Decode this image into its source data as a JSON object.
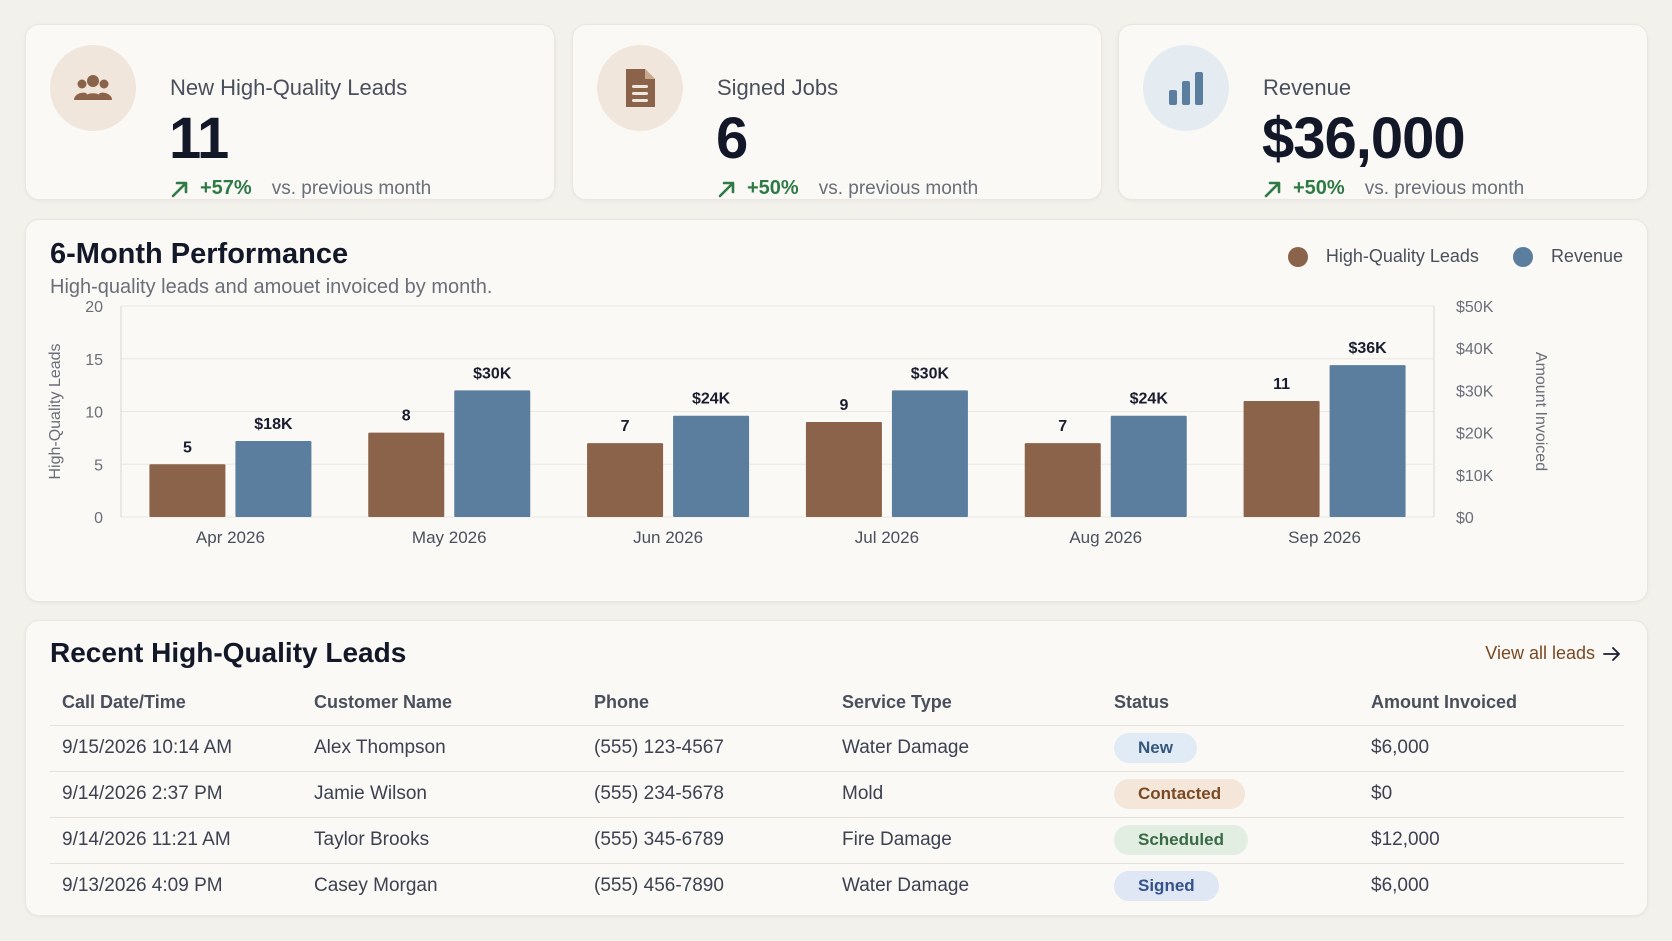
{
  "kpis": [
    {
      "title": "New High-Quality Leads",
      "value": "11",
      "change": "+57%",
      "note": "vs. previous month",
      "icon": "people-icon"
    },
    {
      "title": "Signed Jobs",
      "value": "6",
      "change": "+50%",
      "note": "vs. previous month",
      "icon": "document-icon"
    },
    {
      "title": "Revenue",
      "value": "$36,000",
      "change": "+50%",
      "note": "vs. previous month",
      "icon": "bar-chart-icon"
    }
  ],
  "chart": {
    "title": "6-Month Performance",
    "subtitle": "High-quality leads and amouet invoiced by month.",
    "legend": [
      {
        "label": "High-Quality Leads",
        "color": "#8b634a"
      },
      {
        "label": "Revenue",
        "color": "#5b7e9f"
      }
    ]
  },
  "chart_data": {
    "type": "bar",
    "categories": [
      "Apr 2026",
      "May 2026",
      "Jun 2026",
      "Jul 2026",
      "Aug 2026",
      "Sep 2026"
    ],
    "series": [
      {
        "name": "High-Quality Leads",
        "axis": "left",
        "values": [
          5,
          8,
          7,
          9,
          7,
          11
        ],
        "labels": [
          "5",
          "8",
          "7",
          "9",
          "7",
          "11"
        ],
        "color": "#8b634a"
      },
      {
        "name": "Revenue",
        "axis": "right",
        "values": [
          18000,
          30000,
          24000,
          30000,
          24000,
          36000
        ],
        "labels": [
          "$18K",
          "$30K",
          "$24K",
          "$30K",
          "$24K",
          "$36K"
        ],
        "color": "#5b7e9f"
      }
    ],
    "ylabel": "High-Quality Leads",
    "ylabel_right": "Amount Invoiced",
    "ylim": [
      0,
      20
    ],
    "ylim_right": [
      0,
      50000
    ],
    "yticks": [
      "0",
      "5",
      "10",
      "15",
      "20"
    ],
    "yticks_right": [
      "$0",
      "$10K",
      "$20K",
      "$30K",
      "$40K",
      "$50K"
    ],
    "grid": true,
    "legend_position": "top-right"
  },
  "table": {
    "title": "Recent High-Quality Leads",
    "view_all": "View all leads",
    "columns": [
      "Call Date/Time",
      "Customer Name",
      "Phone",
      "Service Type",
      "Status",
      "Amount Invoiced"
    ],
    "rows": [
      {
        "date": "9/15/2026 10:14 AM",
        "name": "Alex Thompson",
        "phone": "(555) 123-4567",
        "service": "Water Damage",
        "status": "New",
        "amount": "$6,000"
      },
      {
        "date": "9/14/2026 2:37 PM",
        "name": "Jamie Wilson",
        "phone": "(555) 234-5678",
        "service": "Mold",
        "status": "Contacted",
        "amount": "$0"
      },
      {
        "date": "9/14/2026 11:21 AM",
        "name": "Taylor Brooks",
        "phone": "(555) 345-6789",
        "service": "Fire Damage",
        "status": "Scheduled",
        "amount": "$12,000"
      },
      {
        "date": "9/13/2026 4:09 PM",
        "name": "Casey Morgan",
        "phone": "(555) 456-7890",
        "service": "Water Damage",
        "status": "Signed",
        "amount": "$6,000"
      }
    ]
  },
  "colors": {
    "brown": "#8b634a",
    "blue": "#5b7e9f",
    "positive": "#2f7a45"
  }
}
